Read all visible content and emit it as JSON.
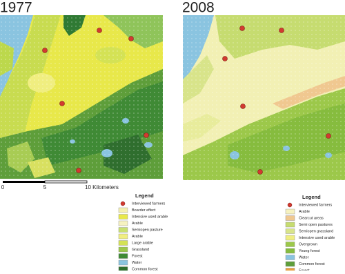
{
  "maps": [
    {
      "year": "1977"
    },
    {
      "year": "2008"
    }
  ],
  "scale_bar": {
    "labels": [
      "0",
      "5",
      "10 Kilometers"
    ]
  },
  "legends": [
    {
      "title": "Legend",
      "items": [
        "Interviewed farmers",
        "Boarder effect",
        "Intensive used arable",
        "Arable",
        "Semiopen pasture",
        "Arable",
        "Large arable",
        "Grassland",
        "Forest",
        "Water",
        "Common forest"
      ]
    },
    {
      "title": "Legend",
      "items": [
        "Interviewed farmers",
        "Arable",
        "Clearcut areas",
        "Semi open pastures",
        "Semiopen grassland",
        "Intensive used arable",
        "Overgrown",
        "Young forest",
        "Water",
        "Common forest",
        "Forest"
      ]
    }
  ]
}
